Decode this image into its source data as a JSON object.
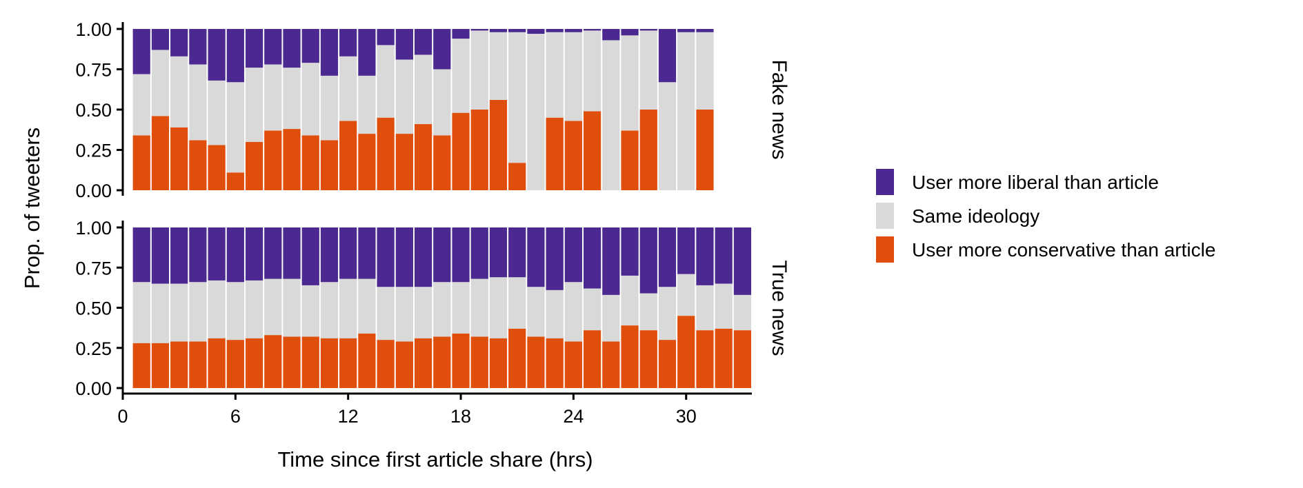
{
  "chart_data": {
    "type": "bar",
    "stacked": true,
    "xlabel": "Time since first article share (hrs)",
    "ylabel": "Prop. of tweeters",
    "x_ticks": [
      "0",
      "6",
      "12",
      "18",
      "24",
      "30"
    ],
    "x_tick_values": [
      0,
      6,
      12,
      18,
      24,
      30
    ],
    "xlim": [
      0,
      33.5
    ],
    "y_ticks": [
      "0.00",
      "0.25",
      "0.50",
      "0.75",
      "1.00"
    ],
    "ylim": [
      0,
      1
    ],
    "legend_position": "right",
    "legend": [
      {
        "key": "liberal",
        "label": "User more liberal than article",
        "color": "#4b2991"
      },
      {
        "key": "same",
        "label": "Same ideology",
        "color": "#d9d9d9"
      },
      {
        "key": "conservative",
        "label": "User more conservative than article",
        "color": "#e04e0b"
      }
    ],
    "panels": [
      {
        "label": "Fake news",
        "x": [
          1,
          2,
          3,
          4,
          5,
          6,
          7,
          8,
          9,
          10,
          11,
          12,
          13,
          14,
          15,
          16,
          17,
          18,
          19,
          20,
          21,
          22,
          23,
          24,
          25,
          26,
          27,
          28,
          29,
          30,
          31
        ],
        "conservative": [
          0.34,
          0.46,
          0.39,
          0.31,
          0.28,
          0.11,
          0.3,
          0.37,
          0.38,
          0.34,
          0.31,
          0.43,
          0.35,
          0.45,
          0.35,
          0.41,
          0.34,
          0.48,
          0.5,
          0.56,
          0.17,
          0.0,
          0.45,
          0.43,
          0.49,
          0.0,
          0.37,
          0.5,
          0.0,
          0.0,
          0.5
        ],
        "same": [
          0.38,
          0.41,
          0.44,
          0.47,
          0.4,
          0.56,
          0.46,
          0.41,
          0.38,
          0.45,
          0.4,
          0.4,
          0.36,
          0.45,
          0.46,
          0.43,
          0.41,
          0.46,
          0.49,
          0.42,
          0.81,
          0.97,
          0.53,
          0.55,
          0.5,
          0.93,
          0.59,
          0.49,
          0.67,
          0.98,
          0.48
        ],
        "liberal": [
          0.28,
          0.13,
          0.17,
          0.22,
          0.32,
          0.33,
          0.24,
          0.22,
          0.24,
          0.21,
          0.29,
          0.17,
          0.29,
          0.1,
          0.19,
          0.16,
          0.25,
          0.06,
          0.01,
          0.02,
          0.02,
          0.03,
          0.02,
          0.02,
          0.01,
          0.07,
          0.04,
          0.01,
          0.33,
          0.02,
          0.02
        ]
      },
      {
        "label": "True news",
        "x": [
          1,
          2,
          3,
          4,
          5,
          6,
          7,
          8,
          9,
          10,
          11,
          12,
          13,
          14,
          15,
          16,
          17,
          18,
          19,
          20,
          21,
          22,
          23,
          24,
          25,
          26,
          27,
          28,
          29,
          30,
          31,
          32,
          33
        ],
        "conservative": [
          0.28,
          0.28,
          0.29,
          0.29,
          0.31,
          0.3,
          0.31,
          0.33,
          0.32,
          0.32,
          0.31,
          0.31,
          0.34,
          0.3,
          0.29,
          0.31,
          0.32,
          0.34,
          0.32,
          0.31,
          0.37,
          0.32,
          0.31,
          0.29,
          0.36,
          0.29,
          0.39,
          0.36,
          0.3,
          0.45,
          0.36,
          0.37,
          0.36
        ],
        "same": [
          0.38,
          0.37,
          0.36,
          0.37,
          0.36,
          0.36,
          0.36,
          0.35,
          0.36,
          0.32,
          0.35,
          0.37,
          0.34,
          0.33,
          0.34,
          0.32,
          0.34,
          0.32,
          0.36,
          0.38,
          0.32,
          0.31,
          0.3,
          0.37,
          0.26,
          0.29,
          0.31,
          0.23,
          0.33,
          0.26,
          0.28,
          0.28,
          0.22
        ],
        "liberal": [
          0.34,
          0.35,
          0.35,
          0.34,
          0.33,
          0.34,
          0.33,
          0.32,
          0.32,
          0.36,
          0.34,
          0.32,
          0.32,
          0.37,
          0.37,
          0.37,
          0.34,
          0.34,
          0.32,
          0.31,
          0.31,
          0.37,
          0.39,
          0.34,
          0.38,
          0.42,
          0.3,
          0.41,
          0.37,
          0.29,
          0.36,
          0.35,
          0.42
        ]
      }
    ]
  }
}
